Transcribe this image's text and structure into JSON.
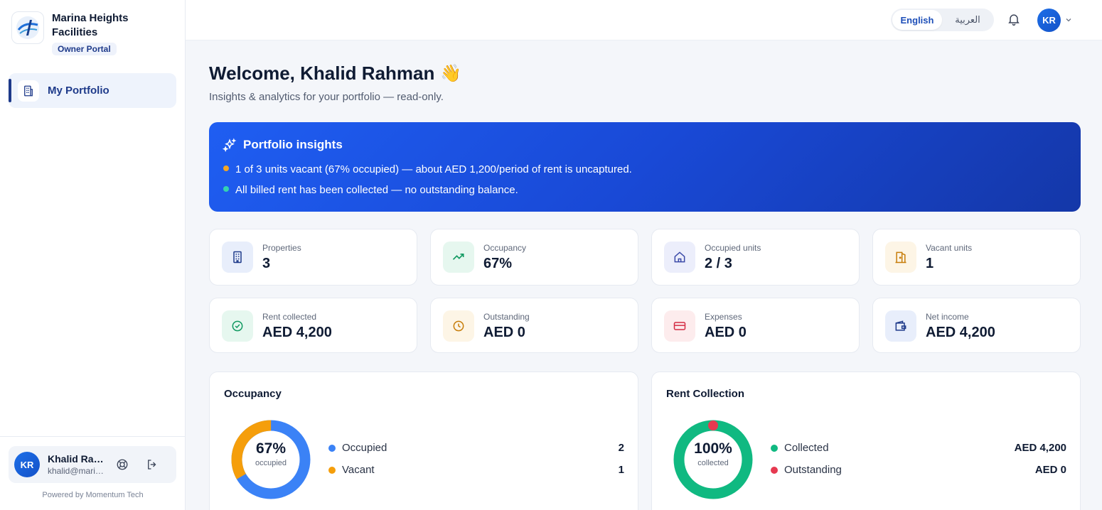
{
  "sidebar": {
    "brand_name": "Marina Heights Facilities",
    "brand_badge": "Owner Portal",
    "nav": [
      {
        "label": "My Portfolio",
        "icon": "building-icon"
      }
    ],
    "user": {
      "initials": "KR",
      "name": "Khalid Rahman",
      "email": "khalid@marinaheights.com"
    },
    "powered_by": "Powered by Momentum Tech"
  },
  "header": {
    "lang_en": "English",
    "lang_ar": "العربية",
    "avatar_initials": "KR"
  },
  "main": {
    "welcome": "Welcome, Khalid Rahman",
    "wave": "👋",
    "subtitle": "Insights & analytics for your portfolio — read-only.",
    "insights": {
      "title": "Portfolio insights",
      "lines": [
        {
          "text": "1 of 3 units vacant (67% occupied) — about AED 1,200/period of rent is uncaptured.",
          "dot_color": "#f5a623"
        },
        {
          "text": "All billed rent has been collected — no outstanding balance.",
          "dot_color": "#34d3b0"
        }
      ]
    },
    "stats": [
      {
        "label": "Properties",
        "value": "3",
        "icon": "building-icon"
      },
      {
        "label": "Occupancy",
        "value": "67%",
        "icon": "trend-up-icon"
      },
      {
        "label": "Occupied units",
        "value": "2 / 3",
        "icon": "home-icon"
      },
      {
        "label": "Vacant units",
        "value": "1",
        "icon": "door-icon"
      },
      {
        "label": "Rent collected",
        "value": "AED 4,200",
        "icon": "check-circle-icon"
      },
      {
        "label": "Outstanding",
        "value": "AED 0",
        "icon": "clock-icon"
      },
      {
        "label": "Expenses",
        "value": "AED 0",
        "icon": "card-icon"
      },
      {
        "label": "Net income",
        "value": "AED 4,200",
        "icon": "wallet-icon"
      }
    ],
    "occupancy_panel": {
      "title": "Occupancy",
      "center_value": "67%",
      "center_label": "occupied",
      "legend": [
        {
          "label": "Occupied",
          "value": "2",
          "color": "#3b82f6"
        },
        {
          "label": "Vacant",
          "value": "1",
          "color": "#f59e0b"
        }
      ],
      "fractions": [
        0.667,
        0.333
      ]
    },
    "rent_panel": {
      "title": "Rent Collection",
      "center_value": "100%",
      "center_label": "collected",
      "legend": [
        {
          "label": "Collected",
          "value": "AED 4,200",
          "color": "#10b981"
        },
        {
          "label": "Outstanding",
          "value": "AED 0",
          "color": "#e63950"
        }
      ],
      "fractions": [
        1.0,
        0.0
      ]
    }
  }
}
